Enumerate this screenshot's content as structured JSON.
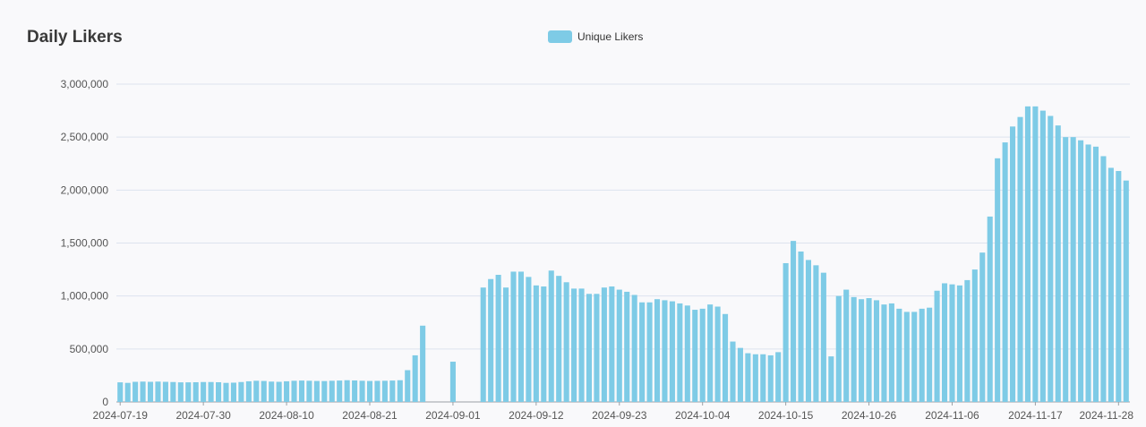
{
  "title": "Daily Likers",
  "legend": {
    "label": "Unique Likers",
    "color": "#7ecbe6"
  },
  "chart_data": {
    "type": "bar",
    "title": "Daily Likers",
    "xlabel": "",
    "ylabel": "",
    "ylim": [
      0,
      3000000
    ],
    "yticks": [
      0,
      500000,
      1000000,
      1500000,
      2000000,
      2500000,
      3000000
    ],
    "ytick_labels": [
      "0",
      "500,000",
      "1,000,000",
      "1,500,000",
      "2,000,000",
      "2,500,000",
      "3,000,000"
    ],
    "xtick_labels": [
      "2024-07-19",
      "2024-07-30",
      "2024-08-10",
      "2024-08-21",
      "2024-09-01",
      "2024-09-12",
      "2024-09-23",
      "2024-10-04",
      "2024-10-15",
      "2024-10-26",
      "2024-11-06",
      "2024-11-17",
      "2024-11-28"
    ],
    "grid": true,
    "legend_position": "top-center",
    "x_start": "2024-07-19",
    "x_end": "2024-11-28",
    "series": [
      {
        "name": "Unique Likers",
        "color": "#7ecbe6",
        "values": [
          185000,
          180000,
          190000,
          192000,
          190000,
          192000,
          190000,
          188000,
          185000,
          185000,
          186000,
          188000,
          188000,
          186000,
          180000,
          182000,
          188000,
          195000,
          200000,
          198000,
          192000,
          190000,
          195000,
          200000,
          202000,
          200000,
          198000,
          197000,
          200000,
          202000,
          205000,
          203000,
          200000,
          198000,
          199000,
          200000,
          202000,
          205000,
          300000,
          440000,
          720000,
          0,
          0,
          0,
          380000,
          0,
          0,
          0,
          1080000,
          1160000,
          1200000,
          1080000,
          1230000,
          1230000,
          1180000,
          1100000,
          1090000,
          1240000,
          1190000,
          1130000,
          1070000,
          1070000,
          1020000,
          1020000,
          1080000,
          1090000,
          1060000,
          1040000,
          1010000,
          940000,
          940000,
          970000,
          960000,
          950000,
          930000,
          910000,
          870000,
          880000,
          920000,
          900000,
          830000,
          570000,
          510000,
          460000,
          450000,
          450000,
          440000,
          470000,
          1310000,
          1520000,
          1420000,
          1340000,
          1290000,
          1220000,
          430000,
          1000000,
          1060000,
          990000,
          970000,
          980000,
          960000,
          920000,
          930000,
          880000,
          850000,
          850000,
          880000,
          890000,
          1050000,
          1120000,
          1110000,
          1100000,
          1150000,
          1250000,
          1410000,
          1750000,
          2300000,
          2450000,
          2600000,
          2690000,
          2790000,
          2790000,
          2750000,
          2700000,
          2610000,
          2500000,
          2500000,
          2470000,
          2430000,
          2410000,
          2320000,
          2210000,
          2180000,
          2090000
        ]
      }
    ]
  }
}
